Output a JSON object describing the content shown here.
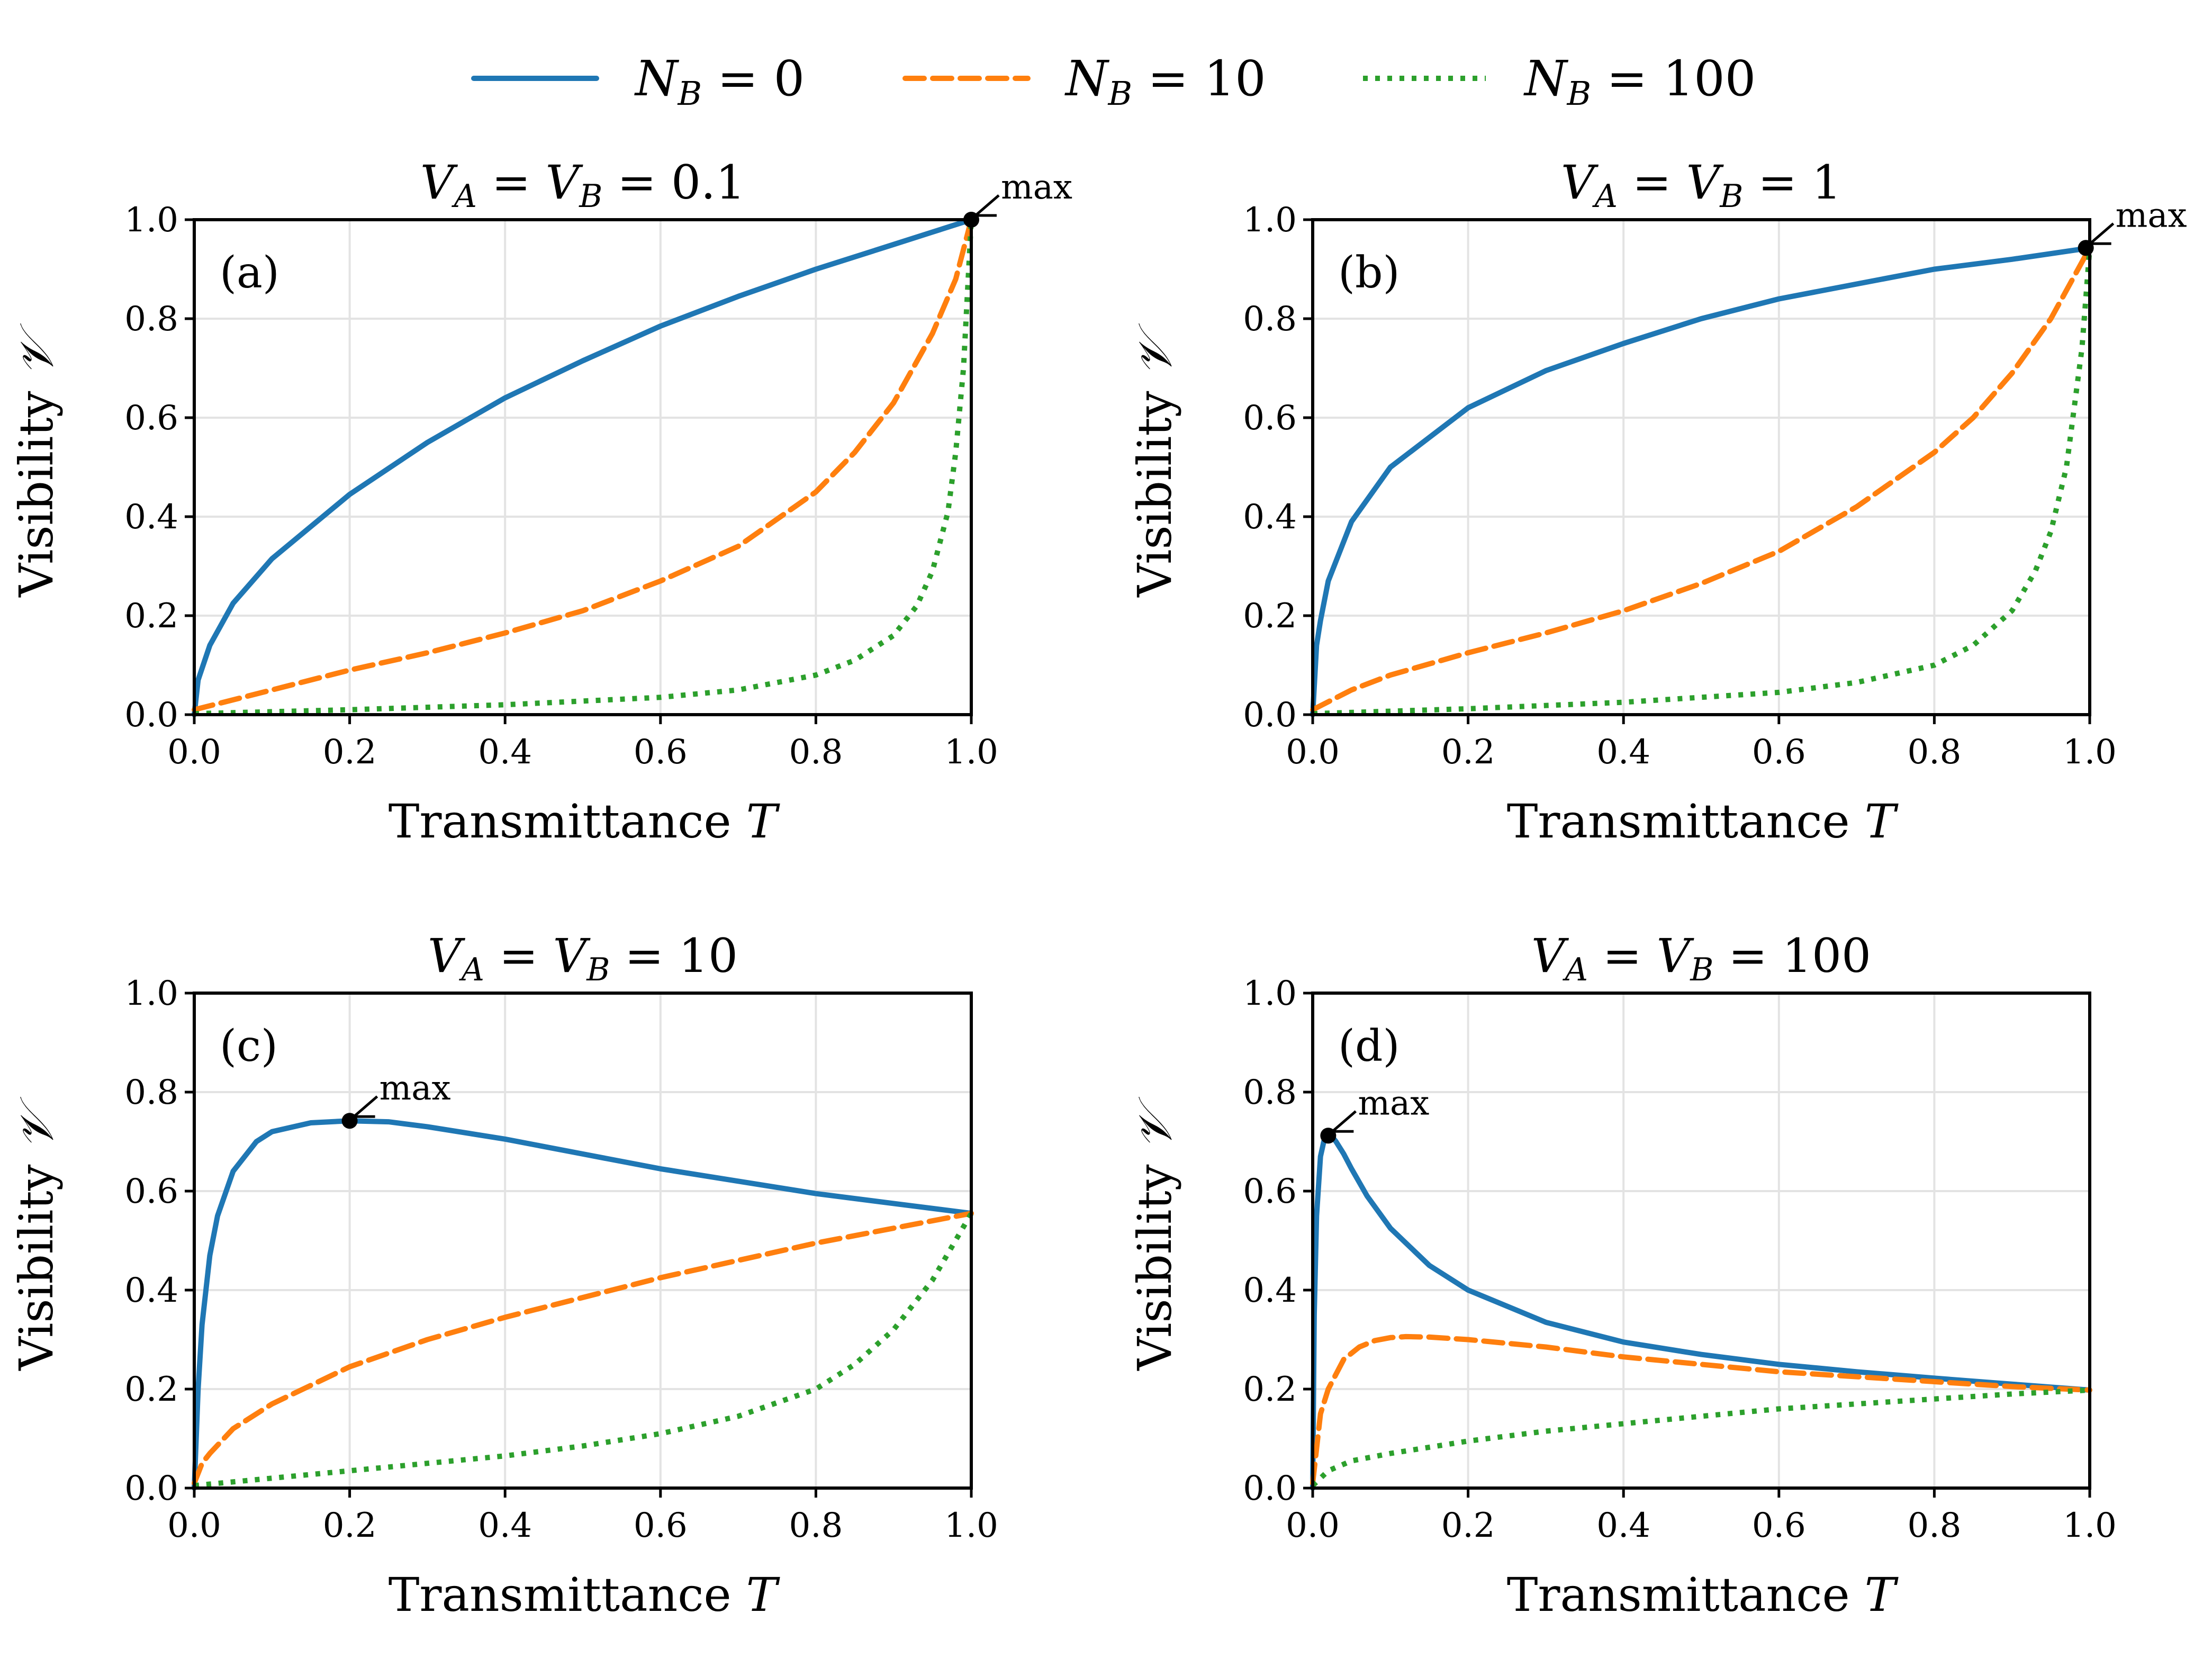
{
  "chart_data": [
    {
      "type": "line",
      "panel": "(a)",
      "title_parts": [
        "V",
        "A",
        " = ",
        "V",
        "B",
        " = 0.1"
      ],
      "xlabel_parts": [
        "Transmittance ",
        "T"
      ],
      "ylabel_parts": [
        "Visibility ",
        "𝒱"
      ],
      "xlim": [
        0,
        1
      ],
      "ylim": [
        0,
        1
      ],
      "xticks": [
        "0.0",
        "0.2",
        "0.4",
        "0.6",
        "0.8",
        "1.0"
      ],
      "yticks": [
        "0.0",
        "0.2",
        "0.4",
        "0.6",
        "0.8",
        "1.0"
      ],
      "grid": true,
      "series": [
        {
          "name": "N_B=0",
          "style": "solid",
          "color": "#1f77b4",
          "x": [
            0,
            0.005,
            0.02,
            0.05,
            0.1,
            0.2,
            0.3,
            0.4,
            0.5,
            0.6,
            0.7,
            0.8,
            0.9,
            0.95,
            1.0
          ],
          "y": [
            0,
            0.07,
            0.14,
            0.225,
            0.315,
            0.445,
            0.55,
            0.64,
            0.715,
            0.785,
            0.845,
            0.9,
            0.95,
            0.975,
            1.0
          ]
        },
        {
          "name": "N_B=10",
          "style": "dashed",
          "color": "#ff7f0e",
          "x": [
            0,
            0.1,
            0.2,
            0.3,
            0.4,
            0.5,
            0.6,
            0.7,
            0.8,
            0.85,
            0.9,
            0.95,
            0.98,
            1.0
          ],
          "y": [
            0.01,
            0.05,
            0.09,
            0.125,
            0.165,
            0.21,
            0.27,
            0.34,
            0.45,
            0.53,
            0.63,
            0.77,
            0.88,
            1.0
          ]
        },
        {
          "name": "N_B=100",
          "style": "dotted",
          "color": "#2ca02c",
          "x": [
            0,
            0.2,
            0.4,
            0.6,
            0.7,
            0.8,
            0.85,
            0.9,
            0.93,
            0.95,
            0.97,
            0.98,
            0.99,
            1.0
          ],
          "y": [
            0.002,
            0.01,
            0.02,
            0.035,
            0.05,
            0.08,
            0.11,
            0.16,
            0.22,
            0.29,
            0.41,
            0.53,
            0.7,
            1.0
          ]
        }
      ],
      "max_point": {
        "x": 1.0,
        "y": 1.0,
        "label": "max"
      }
    },
    {
      "type": "line",
      "panel": "(b)",
      "title_parts": [
        "V",
        "A",
        " = ",
        "V",
        "B",
        " = 1"
      ],
      "xlabel_parts": [
        "Transmittance ",
        "T"
      ],
      "ylabel_parts": [
        "Visibility ",
        "𝒱"
      ],
      "xlim": [
        0,
        1
      ],
      "ylim": [
        0,
        1
      ],
      "xticks": [
        "0.0",
        "0.2",
        "0.4",
        "0.6",
        "0.8",
        "1.0"
      ],
      "yticks": [
        "0.0",
        "0.2",
        "0.4",
        "0.6",
        "0.8",
        "1.0"
      ],
      "grid": true,
      "series": [
        {
          "name": "N_B=0",
          "style": "solid",
          "color": "#1f77b4",
          "x": [
            0,
            0.005,
            0.01,
            0.02,
            0.05,
            0.1,
            0.2,
            0.3,
            0.4,
            0.5,
            0.6,
            0.7,
            0.8,
            0.9,
            1.0
          ],
          "y": [
            0,
            0.14,
            0.19,
            0.27,
            0.39,
            0.5,
            0.62,
            0.695,
            0.75,
            0.8,
            0.84,
            0.87,
            0.9,
            0.92,
            0.943
          ]
        },
        {
          "name": "N_B=10",
          "style": "dashed",
          "color": "#ff7f0e",
          "x": [
            0,
            0.05,
            0.1,
            0.2,
            0.3,
            0.4,
            0.5,
            0.6,
            0.7,
            0.8,
            0.85,
            0.9,
            0.95,
            1.0
          ],
          "y": [
            0.01,
            0.05,
            0.08,
            0.125,
            0.165,
            0.21,
            0.265,
            0.33,
            0.42,
            0.53,
            0.6,
            0.69,
            0.8,
            0.943
          ]
        },
        {
          "name": "N_B=100",
          "style": "dotted",
          "color": "#2ca02c",
          "x": [
            0,
            0.2,
            0.4,
            0.6,
            0.7,
            0.8,
            0.85,
            0.9,
            0.93,
            0.95,
            0.97,
            0.99,
            1.0
          ],
          "y": [
            0.002,
            0.012,
            0.025,
            0.045,
            0.065,
            0.1,
            0.14,
            0.21,
            0.29,
            0.37,
            0.5,
            0.74,
            0.943
          ]
        }
      ],
      "max_point": {
        "x": 0.995,
        "y": 0.943,
        "label": "max"
      }
    },
    {
      "type": "line",
      "panel": "(c)",
      "title_parts": [
        "V",
        "A",
        " = ",
        "V",
        "B",
        " = 10"
      ],
      "xlabel_parts": [
        "Transmittance ",
        "T"
      ],
      "ylabel_parts": [
        "Visibility ",
        "𝒱"
      ],
      "xlim": [
        0,
        1
      ],
      "ylim": [
        0,
        1
      ],
      "xticks": [
        "0.0",
        "0.2",
        "0.4",
        "0.6",
        "0.8",
        "1.0"
      ],
      "yticks": [
        "0.0",
        "0.2",
        "0.4",
        "0.6",
        "0.8",
        "1.0"
      ],
      "grid": true,
      "series": [
        {
          "name": "N_B=0",
          "style": "solid",
          "color": "#1f77b4",
          "x": [
            0,
            0.005,
            0.01,
            0.02,
            0.03,
            0.05,
            0.08,
            0.1,
            0.15,
            0.2,
            0.25,
            0.3,
            0.4,
            0.5,
            0.6,
            0.7,
            0.8,
            0.9,
            1.0
          ],
          "y": [
            0,
            0.2,
            0.33,
            0.47,
            0.55,
            0.64,
            0.7,
            0.72,
            0.738,
            0.742,
            0.74,
            0.73,
            0.705,
            0.675,
            0.645,
            0.62,
            0.595,
            0.575,
            0.555
          ]
        },
        {
          "name": "N_B=10",
          "style": "dashed",
          "color": "#ff7f0e",
          "x": [
            0,
            0.01,
            0.02,
            0.05,
            0.1,
            0.2,
            0.3,
            0.4,
            0.5,
            0.6,
            0.7,
            0.8,
            0.9,
            1.0
          ],
          "y": [
            0.01,
            0.05,
            0.07,
            0.12,
            0.17,
            0.245,
            0.3,
            0.345,
            0.385,
            0.425,
            0.46,
            0.495,
            0.525,
            0.555
          ]
        },
        {
          "name": "N_B=100",
          "style": "dotted",
          "color": "#2ca02c",
          "x": [
            0,
            0.2,
            0.4,
            0.5,
            0.6,
            0.7,
            0.8,
            0.85,
            0.9,
            0.95,
            1.0
          ],
          "y": [
            0.005,
            0.035,
            0.065,
            0.085,
            0.11,
            0.145,
            0.2,
            0.25,
            0.32,
            0.42,
            0.555
          ]
        }
      ],
      "max_point": {
        "x": 0.2,
        "y": 0.742,
        "label": "max"
      }
    },
    {
      "type": "line",
      "panel": "(d)",
      "title_parts": [
        "V",
        "A",
        " = ",
        "V",
        "B",
        " = 100"
      ],
      "xlabel_parts": [
        "Transmittance ",
        "T"
      ],
      "ylabel_parts": [
        "Visibility ",
        "𝒱"
      ],
      "xlim": [
        0,
        1
      ],
      "ylim": [
        0,
        1
      ],
      "xticks": [
        "0.0",
        "0.2",
        "0.4",
        "0.6",
        "0.8",
        "1.0"
      ],
      "yticks": [
        "0.0",
        "0.2",
        "0.4",
        "0.6",
        "0.8",
        "1.0"
      ],
      "grid": true,
      "series": [
        {
          "name": "N_B=0",
          "style": "solid",
          "color": "#1f77b4",
          "x": [
            0,
            0.002,
            0.005,
            0.01,
            0.015,
            0.02,
            0.025,
            0.03,
            0.04,
            0.05,
            0.07,
            0.1,
            0.15,
            0.2,
            0.3,
            0.4,
            0.5,
            0.6,
            0.7,
            0.8,
            0.9,
            1.0
          ],
          "y": [
            0,
            0.35,
            0.55,
            0.67,
            0.705,
            0.712,
            0.71,
            0.7,
            0.675,
            0.645,
            0.59,
            0.525,
            0.45,
            0.4,
            0.335,
            0.295,
            0.27,
            0.25,
            0.235,
            0.222,
            0.21,
            0.198
          ]
        },
        {
          "name": "N_B=10",
          "style": "dashed",
          "color": "#ff7f0e",
          "x": [
            0,
            0.01,
            0.02,
            0.04,
            0.06,
            0.08,
            0.1,
            0.12,
            0.15,
            0.2,
            0.3,
            0.4,
            0.5,
            0.6,
            0.7,
            0.8,
            0.9,
            1.0
          ],
          "y": [
            0.01,
            0.15,
            0.2,
            0.26,
            0.285,
            0.298,
            0.304,
            0.306,
            0.305,
            0.3,
            0.285,
            0.265,
            0.25,
            0.235,
            0.225,
            0.215,
            0.205,
            0.198
          ]
        },
        {
          "name": "N_B=100",
          "style": "dotted",
          "color": "#2ca02c",
          "x": [
            0,
            0.02,
            0.05,
            0.1,
            0.2,
            0.3,
            0.4,
            0.5,
            0.6,
            0.7,
            0.8,
            0.9,
            1.0
          ],
          "y": [
            0.005,
            0.035,
            0.055,
            0.07,
            0.095,
            0.115,
            0.13,
            0.145,
            0.16,
            0.17,
            0.18,
            0.19,
            0.198
          ]
        }
      ],
      "max_point": {
        "x": 0.02,
        "y": 0.712,
        "label": "max"
      }
    }
  ],
  "legend": {
    "position": "top-center",
    "entries": [
      {
        "symbol_parts": [
          "N",
          "B",
          " = 0"
        ],
        "style": "solid",
        "color": "#1f77b4"
      },
      {
        "symbol_parts": [
          "N",
          "B",
          " = 10"
        ],
        "style": "dashed",
        "color": "#ff7f0e"
      },
      {
        "symbol_parts": [
          "N",
          "B",
          " = 100"
        ],
        "style": "dotted",
        "color": "#2ca02c"
      }
    ]
  }
}
